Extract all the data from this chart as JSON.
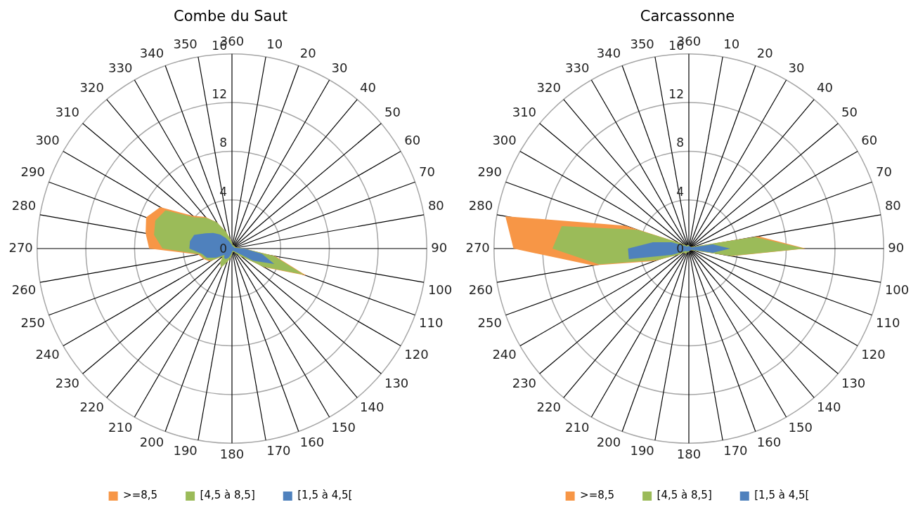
{
  "chart_data": [
    {
      "type": "radar",
      "title": "Combe du Saut",
      "categories": [
        "360",
        "10",
        "20",
        "30",
        "40",
        "50",
        "60",
        "70",
        "80",
        "90",
        "100",
        "110",
        "120",
        "130",
        "140",
        "150",
        "160",
        "170",
        "180",
        "190",
        "200",
        "210",
        "220",
        "230",
        "240",
        "250",
        "260",
        "270",
        "280",
        "290",
        "300",
        "310",
        "320",
        "330",
        "340",
        "350"
      ],
      "ylim": [
        0,
        16
      ],
      "yticks": [
        0,
        4,
        8,
        12,
        16
      ],
      "grid": true,
      "legend": "bottom",
      "marker": "none",
      "series": [
        {
          "name": ">=8,5",
          "color": "#f79646",
          "values": [
            0.5,
            0.3,
            0.3,
            0.3,
            0.3,
            0.3,
            0.3,
            0.3,
            0.5,
            1,
            3.6,
            6.5,
            3.1,
            1,
            0.5,
            0.3,
            0.3,
            0.3,
            0.5,
            0.8,
            1.2,
            1.8,
            1.5,
            1,
            2.1,
            2.5,
            2.8,
            6.8,
            7.2,
            7.5,
            6.8,
            4.2,
            3.4,
            2.5,
            1.5,
            0.8
          ]
        },
        {
          "name": "[4,5 à 8,5]",
          "color": "#9bbb59",
          "values": [
            0.5,
            0.3,
            0.3,
            0.3,
            0.3,
            0.3,
            0.3,
            0.3,
            0.5,
            1,
            3.5,
            6.3,
            3,
            1,
            0.5,
            0.3,
            0.3,
            0.3,
            0.5,
            0.8,
            1.2,
            1.8,
            1.5,
            1,
            2,
            2.4,
            2.7,
            5.7,
            6.5,
            6.7,
            6.3,
            4,
            3.3,
            2.5,
            1.5,
            0.8
          ]
        },
        {
          "name": "[1,5 à 4,5[",
          "color": "#4f81bd",
          "values": [
            0.3,
            0.2,
            0.2,
            0.2,
            0.2,
            0.2,
            0.2,
            0.2,
            0.3,
            1,
            2.5,
            3.7,
            2,
            0.5,
            0.3,
            0.2,
            0.2,
            0.2,
            0.3,
            0.5,
            0.8,
            1,
            1,
            0.8,
            1.5,
            2.2,
            2.5,
            3.5,
            3.5,
            3.3,
            2.5,
            2,
            1.5,
            1,
            0.6,
            0.4
          ]
        }
      ]
    },
    {
      "type": "radar",
      "title": "Carcassonne",
      "categories": [
        "360",
        "10",
        "20",
        "30",
        "40",
        "50",
        "60",
        "70",
        "80",
        "90",
        "100",
        "110",
        "120",
        "130",
        "140",
        "150",
        "160",
        "170",
        "180",
        "190",
        "200",
        "210",
        "220",
        "230",
        "240",
        "250",
        "260",
        "270",
        "280",
        "290",
        "300",
        "310",
        "320",
        "330",
        "340",
        "350"
      ],
      "ylim": [
        0,
        16
      ],
      "yticks": [
        0,
        4,
        8,
        12,
        16
      ],
      "grid": true,
      "legend": "bottom",
      "marker": "none",
      "series": [
        {
          "name": ">=8,5",
          "color": "#f79646",
          "values": [
            0.3,
            0.2,
            0.2,
            0.2,
            0.2,
            0.2,
            0.3,
            0.5,
            5.8,
            9.6,
            3.6,
            0.5,
            0.3,
            0.2,
            0.2,
            0.2,
            0.2,
            0.2,
            0.3,
            0.3,
            0.3,
            0.5,
            0.5,
            0.5,
            1,
            3,
            8,
            14.4,
            15.3,
            5.5,
            1,
            0.5,
            0.3,
            0.3,
            0.3,
            0.3
          ]
        },
        {
          "name": "[4,5 à 8,5]",
          "color": "#9bbb59",
          "values": [
            0.3,
            0.2,
            0.2,
            0.2,
            0.2,
            0.2,
            0.3,
            0.5,
            5.5,
            9.5,
            3.5,
            0.5,
            0.3,
            0.2,
            0.2,
            0.2,
            0.2,
            0.2,
            0.3,
            0.3,
            0.3,
            0.5,
            0.5,
            0.5,
            1,
            2.8,
            7.5,
            11.2,
            10.6,
            4.5,
            1,
            0.5,
            0.3,
            0.3,
            0.3,
            0.3
          ]
        },
        {
          "name": "[1,5 à 4,5[",
          "color": "#4f81bd",
          "values": [
            0.2,
            0.2,
            0.2,
            0.2,
            0.2,
            0.2,
            0.2,
            0.3,
            2,
            3.4,
            2,
            0.3,
            0.2,
            0.2,
            0.2,
            0.2,
            0.2,
            0.2,
            0.2,
            0.2,
            0.2,
            0.3,
            0.3,
            0.3,
            0.5,
            1.5,
            5,
            5,
            3,
            1.5,
            0.5,
            0.3,
            0.2,
            0.2,
            0.2,
            0.2
          ]
        }
      ]
    }
  ]
}
